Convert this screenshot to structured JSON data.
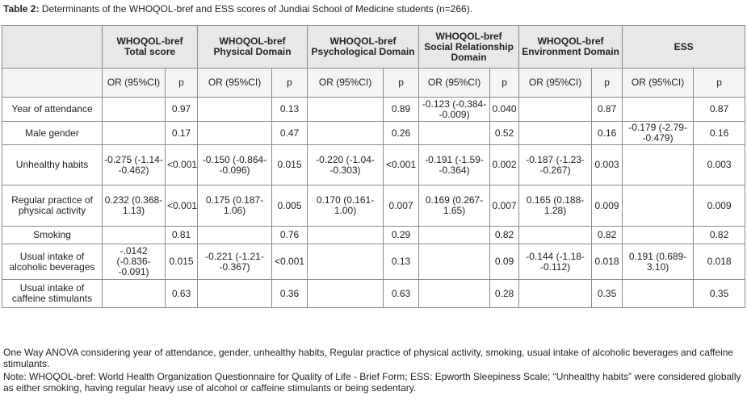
{
  "caption": {
    "label": "Table 2:",
    "text": " Determinants of the WHOQOL-bref and ESS scores of Jundiai School of Medicine students (n=266)."
  },
  "headers": [
    "WHOQOL-bref Total score",
    "WHOQOL-bref Physical Domain",
    "WHOQOL-bref Psychological Domain",
    "WHOQOL-bref Social Relationship Domain",
    "WHOQOL-bref Environment Domain",
    "ESS"
  ],
  "subheaders": {
    "or": "OR (95%CI)",
    "p": "p"
  },
  "rows": [
    {
      "label": "Year of attendance",
      "cells": [
        [
          "",
          "0.97"
        ],
        [
          "",
          "0.13"
        ],
        [
          "",
          "0.89"
        ],
        [
          "-0.123 (-0.384--0.009)",
          "0.040"
        ],
        [
          "",
          "0.87"
        ],
        [
          "",
          "0.87"
        ]
      ]
    },
    {
      "label": "Male gender",
      "cells": [
        [
          "",
          "0.17"
        ],
        [
          "",
          "0.47"
        ],
        [
          "",
          "0.26"
        ],
        [
          "",
          "0.52"
        ],
        [
          "",
          "0.16"
        ],
        [
          "-0.179 (-2.79--0.479)",
          "0.16"
        ]
      ]
    },
    {
      "label": "Unhealthy habits",
      "cells": [
        [
          "-0.275 (-1.14--0.462)",
          "<0.001"
        ],
        [
          "-0.150 (-0.864--0.096)",
          "0.015"
        ],
        [
          "-0.220 (-1.04--0.303)",
          "<0.001"
        ],
        [
          "-0.191 (-1.59--0.364)",
          "0.002"
        ],
        [
          "-0.187 (-1.23--0.267)",
          "0.003"
        ],
        [
          "",
          "0.003"
        ]
      ]
    },
    {
      "label": "Regular practice of physical activity",
      "cells": [
        [
          "0.232 (0.368-1.13)",
          "<0.001"
        ],
        [
          "0.175 (0.187-1.06)",
          "0.005"
        ],
        [
          "0.170 (0.161-1.00)",
          "0.007"
        ],
        [
          "0.169 (0.267-1.65)",
          "0.007"
        ],
        [
          "0.165 (0.188-1.28)",
          "0.009"
        ],
        [
          "",
          "0.009"
        ]
      ]
    },
    {
      "label": "Smoking",
      "cells": [
        [
          "",
          "0.81"
        ],
        [
          "",
          "0.76"
        ],
        [
          "",
          "0.29"
        ],
        [
          "",
          "0.82"
        ],
        [
          "",
          "0.82"
        ],
        [
          "",
          "0.82"
        ]
      ]
    },
    {
      "label": "Usual intake of alcoholic beverages",
      "cells": [
        [
          "-.0142 (-0.836--0.091)",
          "0.015"
        ],
        [
          "-0.221 (-1.21--0.367)",
          "<0.001"
        ],
        [
          "",
          "0.13"
        ],
        [
          "",
          "0.09"
        ],
        [
          "-0.144 (-1.18--0.112)",
          "0.018"
        ],
        [
          "0.191 (0.689-3.10)",
          "0.018"
        ]
      ]
    },
    {
      "label": "Usual intake of caffeine stimulants",
      "cells": [
        [
          "",
          "0.63"
        ],
        [
          "",
          "0.36"
        ],
        [
          "",
          "0.63"
        ],
        [
          "",
          "0.28"
        ],
        [
          "",
          "0.35"
        ],
        [
          "",
          "0.35"
        ]
      ]
    }
  ],
  "notes": [
    "One Way ANOVA considering year of attendance, gender, unhealthy habits, Regular practice of physical activity, smoking, usual intake of alcoholic beverages and caffeine stimulants.",
    "Note: WHOQOL-bref: World Health Organization Questionnaire for Quality of Life - Brief Form; ESS: Epworth Sleepiness Scale; “Unhealthy habits” were considered globally as either smoking, having regular heavy use of alcohol or caffeine stimulants or being sedentary."
  ]
}
